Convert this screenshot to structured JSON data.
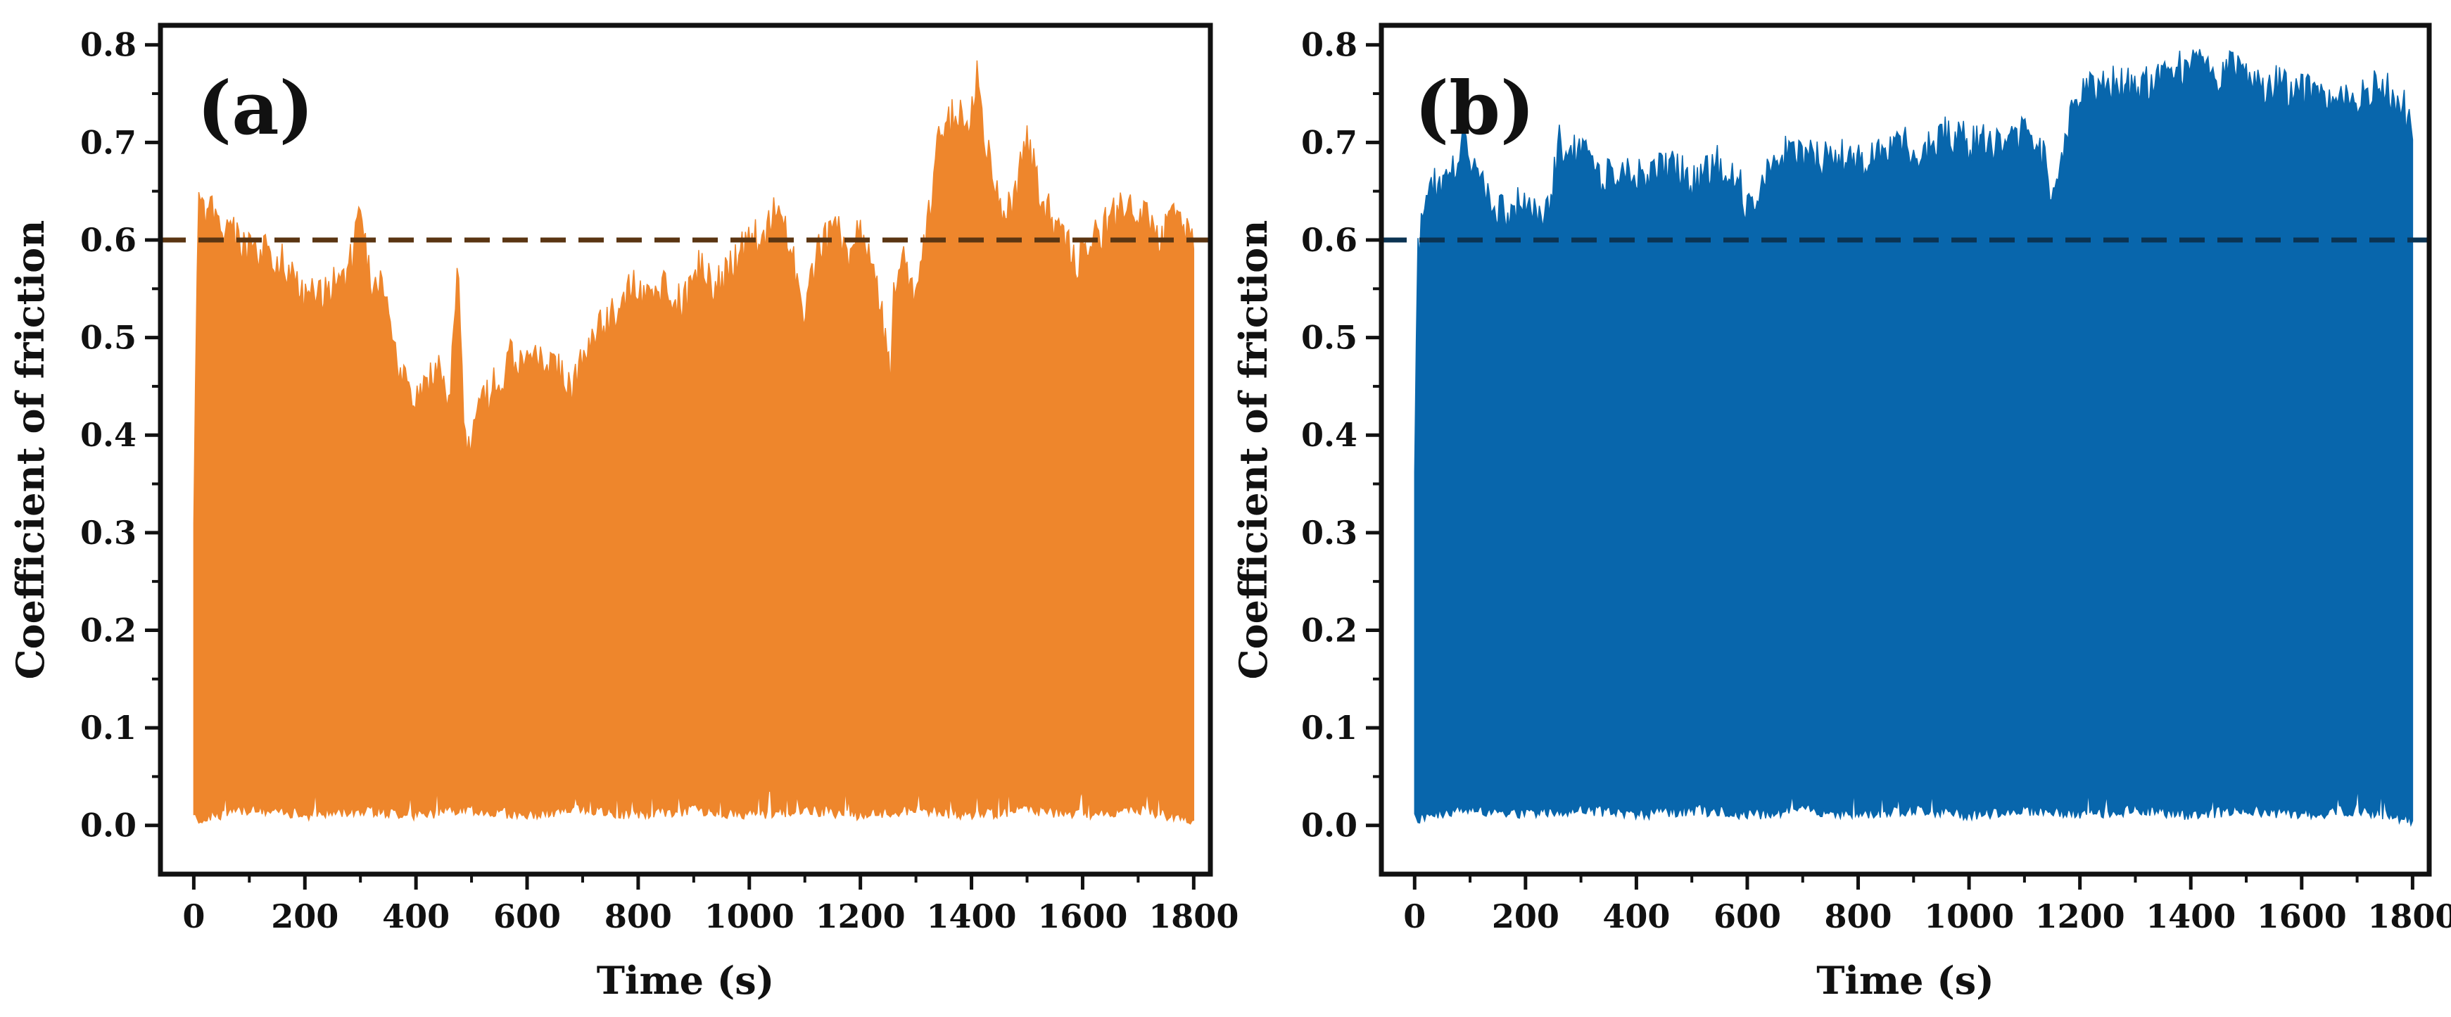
{
  "chart_data": [
    {
      "panel_label": "(a)",
      "type": "area",
      "description_type": "oscillating coefficient of friction vs time (filled band between lower and upper envelope)",
      "xlabel": "Time (s)",
      "ylabel": "Coefficient of friction",
      "xlim": [
        -60,
        1830
      ],
      "ylim": [
        -0.05,
        0.82
      ],
      "xticks": [
        0,
        200,
        400,
        600,
        800,
        1000,
        1200,
        1400,
        1600,
        1800
      ],
      "yticks": [
        0.0,
        0.1,
        0.2,
        0.3,
        0.4,
        0.5,
        0.6,
        0.7,
        0.8
      ],
      "ytick_labels": [
        "0.0",
        "0.1",
        "0.2",
        "0.3",
        "0.4",
        "0.5",
        "0.6",
        "0.7",
        "0.8"
      ],
      "fill_color": "#EE862C",
      "reference_line": {
        "y": 0.6,
        "style": "dashed",
        "color": "#5A3512"
      },
      "upper_envelope": {
        "x": [
          0,
          8,
          25,
          50,
          80,
          110,
          140,
          170,
          200,
          240,
          280,
          300,
          320,
          340,
          360,
          380,
          400,
          420,
          440,
          460,
          475,
          480,
          490,
          510,
          540,
          570,
          600,
          640,
          680,
          720,
          760,
          790,
          820,
          850,
          880,
          910,
          940,
          970,
          1000,
          1030,
          1055,
          1080,
          1100,
          1120,
          1140,
          1160,
          1180,
          1200,
          1220,
          1240,
          1255,
          1260,
          1280,
          1300,
          1320,
          1340,
          1360,
          1380,
          1395,
          1410,
          1425,
          1440,
          1460,
          1480,
          1495,
          1510,
          1530,
          1560,
          1590,
          1620,
          1650,
          1680,
          1700,
          1720,
          1740,
          1760,
          1780,
          1800
        ],
        "y": [
          0.35,
          0.66,
          0.65,
          0.64,
          0.62,
          0.6,
          0.61,
          0.59,
          0.56,
          0.57,
          0.59,
          0.65,
          0.58,
          0.57,
          0.51,
          0.47,
          0.46,
          0.48,
          0.49,
          0.45,
          0.61,
          0.52,
          0.4,
          0.44,
          0.47,
          0.5,
          0.49,
          0.5,
          0.47,
          0.52,
          0.55,
          0.58,
          0.56,
          0.58,
          0.55,
          0.6,
          0.57,
          0.6,
          0.62,
          0.63,
          0.66,
          0.6,
          0.53,
          0.61,
          0.62,
          0.64,
          0.6,
          0.63,
          0.59,
          0.54,
          0.47,
          0.58,
          0.6,
          0.55,
          0.63,
          0.72,
          0.74,
          0.76,
          0.74,
          0.79,
          0.72,
          0.68,
          0.64,
          0.67,
          0.73,
          0.7,
          0.66,
          0.62,
          0.6,
          0.62,
          0.64,
          0.66,
          0.63,
          0.65,
          0.62,
          0.65,
          0.64,
          0.62
        ]
      },
      "lower_envelope": {
        "x": [
          0,
          100,
          200,
          300,
          400,
          500,
          600,
          700,
          800,
          900,
          1000,
          1100,
          1200,
          1300,
          1400,
          1500,
          1600,
          1700,
          1800
        ],
        "y": [
          0.0,
          0.01,
          0.005,
          0.01,
          0.005,
          0.01,
          0.005,
          0.01,
          0.005,
          0.01,
          0.005,
          0.01,
          0.005,
          0.01,
          0.005,
          0.01,
          0.005,
          0.01,
          0.0
        ]
      }
    },
    {
      "panel_label": "(b)",
      "type": "area",
      "description_type": "oscillating coefficient of friction vs time (filled band between lower and upper envelope)",
      "xlabel": "Time (s)",
      "ylabel": "Coefficient of friction",
      "xlim": [
        -60,
        1830
      ],
      "ylim": [
        -0.05,
        0.82
      ],
      "xticks": [
        0,
        200,
        400,
        600,
        800,
        1000,
        1200,
        1400,
        1600,
        1800
      ],
      "yticks": [
        0.0,
        0.1,
        0.2,
        0.3,
        0.4,
        0.5,
        0.6,
        0.7,
        0.8
      ],
      "ytick_labels": [
        "0.0",
        "0.1",
        "0.2",
        "0.3",
        "0.4",
        "0.5",
        "0.6",
        "0.7",
        "0.8"
      ],
      "fill_color": "#0866AC",
      "reference_line": {
        "y": 0.6,
        "style": "dashed",
        "color": "#0B3352"
      },
      "upper_envelope": {
        "x": [
          0,
          5,
          15,
          40,
          70,
          90,
          110,
          130,
          160,
          200,
          240,
          260,
          280,
          300,
          340,
          380,
          420,
          460,
          500,
          540,
          580,
          600,
          640,
          680,
          720,
          760,
          800,
          840,
          880,
          920,
          960,
          1000,
          1040,
          1080,
          1120,
          1140,
          1150,
          1180,
          1200,
          1240,
          1280,
          1320,
          1360,
          1400,
          1420,
          1440,
          1480,
          1520,
          1560,
          1600,
          1640,
          1680,
          1720,
          1740,
          1760,
          1780,
          1800
        ],
        "y": [
          0.4,
          0.6,
          0.65,
          0.68,
          0.7,
          0.72,
          0.7,
          0.67,
          0.65,
          0.66,
          0.65,
          0.72,
          0.7,
          0.72,
          0.68,
          0.7,
          0.68,
          0.7,
          0.68,
          0.7,
          0.69,
          0.65,
          0.69,
          0.72,
          0.7,
          0.71,
          0.7,
          0.72,
          0.72,
          0.71,
          0.73,
          0.72,
          0.72,
          0.73,
          0.72,
          0.7,
          0.67,
          0.74,
          0.77,
          0.78,
          0.78,
          0.78,
          0.79,
          0.8,
          0.8,
          0.79,
          0.8,
          0.78,
          0.78,
          0.77,
          0.77,
          0.76,
          0.77,
          0.79,
          0.77,
          0.76,
          0.74
        ]
      },
      "lower_envelope": {
        "x": [
          0,
          100,
          200,
          300,
          400,
          500,
          600,
          700,
          800,
          900,
          1000,
          1100,
          1200,
          1300,
          1400,
          1500,
          1600,
          1700,
          1800
        ],
        "y": [
          0.0,
          0.01,
          0.005,
          0.01,
          0.005,
          0.01,
          0.005,
          0.01,
          0.005,
          0.01,
          0.005,
          0.01,
          0.005,
          0.01,
          0.005,
          0.01,
          0.005,
          0.01,
          0.0
        ]
      }
    }
  ]
}
